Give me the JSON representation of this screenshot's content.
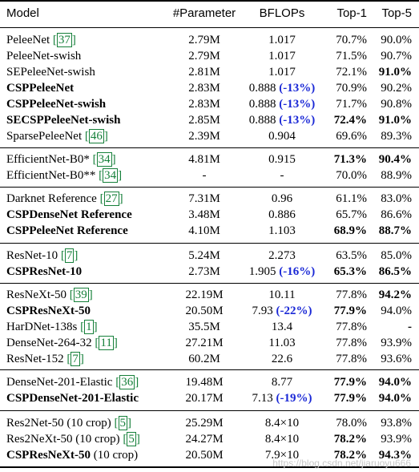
{
  "header": {
    "model": "Model",
    "params": "#Parameter",
    "bflops": "BFLOPs",
    "top1": "Top-1",
    "top5": "Top-5"
  },
  "rows": [
    {
      "model": "PeleeNet ",
      "ref": "[37]",
      "params": "2.79M",
      "bflops": "1.017",
      "delta": "",
      "top1": "70.7%",
      "top5": "90.0%",
      "bm": false,
      "b1": false,
      "b5": false
    },
    {
      "model": "PeleeNet-swish",
      "ref": "",
      "params": "2.79M",
      "bflops": "1.017",
      "delta": "",
      "top1": "71.5%",
      "top5": "90.7%",
      "bm": false,
      "b1": false,
      "b5": false
    },
    {
      "model": "SEPeleeNet-swish",
      "ref": "",
      "params": "2.81M",
      "bflops": "1.017",
      "delta": "",
      "top1": "72.1%",
      "top5": "91.0%",
      "bm": false,
      "b1": false,
      "b5": true
    },
    {
      "model": "CSPPeleeNet",
      "ref": "",
      "params": "2.83M",
      "bflops": "0.888 ",
      "delta": "(-13%)",
      "top1": "70.9%",
      "top5": "90.2%",
      "bm": true,
      "b1": false,
      "b5": false
    },
    {
      "model": "CSPPeleeNet-swish",
      "ref": "",
      "params": "2.83M",
      "bflops": "0.888 ",
      "delta": "(-13%)",
      "top1": "71.7%",
      "top5": "90.8%",
      "bm": true,
      "b1": false,
      "b5": false
    },
    {
      "model": "SECSPPeleeNet-swish",
      "ref": "",
      "params": "2.85M",
      "bflops": "0.888 ",
      "delta": "(-13%)",
      "top1": "72.4%",
      "top5": "91.0%",
      "bm": true,
      "b1": true,
      "b5": true
    },
    {
      "model": "SparsePeleeNet ",
      "ref": "[46]",
      "params": "2.39M",
      "bflops": "0.904",
      "delta": "",
      "top1": "69.6%",
      "top5": "89.3%",
      "bm": false,
      "b1": false,
      "b5": false
    },
    {
      "model": "EfficientNet-B0* ",
      "ref": "[34]",
      "params": "4.81M",
      "bflops": "0.915",
      "delta": "",
      "top1": "71.3%",
      "top5": "90.4%",
      "bm": false,
      "b1": true,
      "b5": true
    },
    {
      "model": "EfficientNet-B0** ",
      "ref": "[34]",
      "params": "-",
      "bflops": "-",
      "delta": "",
      "top1": "70.0%",
      "top5": "88.9%",
      "bm": false,
      "b1": false,
      "b5": false
    },
    {
      "model": "Darknet Reference ",
      "ref": "[27]",
      "params": "7.31M",
      "bflops": "0.96",
      "delta": "",
      "top1": "61.1%",
      "top5": "83.0%",
      "bm": false,
      "b1": false,
      "b5": false
    },
    {
      "model": "CSPDenseNet Reference",
      "ref": "",
      "params": "3.48M",
      "bflops": "0.886",
      "delta": "",
      "top1": "65.7%",
      "top5": "86.6%",
      "bm": true,
      "b1": false,
      "b5": false
    },
    {
      "model": "CSPPeleeNet Reference",
      "ref": "",
      "params": "4.10M",
      "bflops": "1.103",
      "delta": "",
      "top1": "68.9%",
      "top5": "88.7%",
      "bm": true,
      "b1": true,
      "b5": true
    },
    {
      "model": "ResNet-10 ",
      "ref": "[7]",
      "params": "5.24M",
      "bflops": "2.273",
      "delta": "",
      "top1": "63.5%",
      "top5": "85.0%",
      "bm": false,
      "b1": false,
      "b5": false
    },
    {
      "model": "CSPResNet-10",
      "ref": "",
      "params": "2.73M",
      "bflops": "1.905 ",
      "delta": "(-16%)",
      "top1": "65.3%",
      "top5": "86.5%",
      "bm": true,
      "b1": true,
      "b5": true
    },
    {
      "model": "ResNeXt-50 ",
      "ref": "[39]",
      "params": "22.19M",
      "bflops": "10.11",
      "delta": "",
      "top1": "77.8%",
      "top5": "94.2%",
      "bm": false,
      "b1": false,
      "b5": true
    },
    {
      "model": "CSPResNeXt-50",
      "ref": "",
      "params": "20.50M",
      "bflops": "7.93 ",
      "delta": "(-22%)",
      "top1": "77.9%",
      "top5": "94.0%",
      "bm": true,
      "b1": true,
      "b5": false
    },
    {
      "model": "HarDNet-138s ",
      "ref": "[1]",
      "params": "35.5M",
      "bflops": "13.4",
      "delta": "",
      "top1": "77.8%",
      "top5": "-",
      "bm": false,
      "b1": false,
      "b5": true
    },
    {
      "model": "DenseNet-264-32 ",
      "ref": "[11]",
      "params": "27.21M",
      "bflops": "11.03",
      "delta": "",
      "top1": "77.8%",
      "top5": "93.9%",
      "bm": false,
      "b1": false,
      "b5": false
    },
    {
      "model": "ResNet-152 ",
      "ref": "[7]",
      "params": "60.2M",
      "bflops": "22.6",
      "delta": "",
      "top1": "77.8%",
      "top5": "93.6%",
      "bm": false,
      "b1": false,
      "b5": false
    },
    {
      "model": "DenseNet-201-Elastic ",
      "ref": "[36]",
      "params": "19.48M",
      "bflops": "8.77",
      "delta": "",
      "top1": "77.9%",
      "top5": "94.0%",
      "bm": false,
      "b1": true,
      "b5": true
    },
    {
      "model": "CSPDenseNet-201-Elastic",
      "ref": "",
      "params": "20.17M",
      "bflops": "7.13 ",
      "delta": "(-19%)",
      "top1": "77.9%",
      "top5": "94.0%",
      "bm": true,
      "b1": true,
      "b5": true
    },
    {
      "model": "Res2Net-50 (10 crop) ",
      "ref": "[5]",
      "params": "25.29M",
      "bflops": "8.4×10",
      "delta": "",
      "top1": "78.0%",
      "top5": "93.8%",
      "bm": false,
      "b1": false,
      "b5": false
    },
    {
      "model": "Res2NeXt-50 (10 crop) ",
      "ref": "[5]",
      "params": "24.27M",
      "bflops": "8.4×10",
      "delta": "",
      "top1": "78.2%",
      "top5": "93.9%",
      "bm": false,
      "b1": true,
      "b5": false
    },
    {
      "model": "CSPResNeXt-50",
      "ref": "",
      "suffix": " (10 crop)",
      "params": "20.50M",
      "bflops": "7.9×10",
      "delta": "",
      "top1": "78.2%",
      "top5": "94.3%",
      "bm": true,
      "b1": true,
      "b5": true
    }
  ],
  "watermark": "https://blog.csdn.net/jiaruoyu666"
}
